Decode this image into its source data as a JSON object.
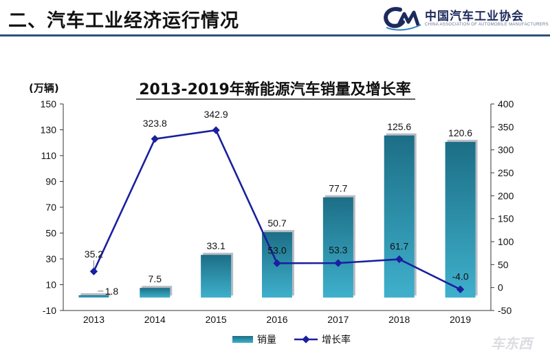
{
  "header": {
    "title": "二、汽车工业经济运行情况",
    "logo_mark": "CM",
    "logo_name": "中国汽车工业协会",
    "logo_subtitle": "CHINA ASSOCIATION OF AUTOMOBILE MANUFACTURERS"
  },
  "watermark": "车东西",
  "colors": {
    "bar": "#2a93ad",
    "line": "#1a1f9e",
    "title_rule": "#2f4f7a"
  },
  "chart_data": {
    "type": "bar",
    "title": "2013-2019年新能源汽车销量及增长率",
    "ylabel_left": "(万辆)",
    "categories": [
      "2013",
      "2014",
      "2015",
      "2016",
      "2017",
      "2018",
      "2019"
    ],
    "series": [
      {
        "name": "销量",
        "type": "bar",
        "axis": "left",
        "values": [
          1.8,
          7.5,
          33.1,
          50.7,
          77.7,
          125.6,
          120.6
        ],
        "labels": [
          "1.8",
          "7.5",
          "33.1",
          "50.7",
          "77.7",
          "125.6",
          "120.6"
        ]
      },
      {
        "name": "增长率",
        "type": "line",
        "axis": "right",
        "values": [
          35.2,
          323.8,
          342.9,
          53.0,
          53.3,
          61.7,
          -4.0
        ],
        "labels": [
          "35.2",
          "323.8",
          "342.9",
          "53.0",
          "53.3",
          "61.7",
          "-4.0"
        ]
      }
    ],
    "y_left": {
      "min": -10,
      "max": 150,
      "ticks": [
        "150",
        "130",
        "110",
        "90",
        "70",
        "50",
        "30",
        "10",
        "-10"
      ]
    },
    "y_right": {
      "min": -50,
      "max": 400,
      "ticks": [
        "400",
        "350",
        "300",
        "250",
        "200",
        "150",
        "100",
        "50",
        "0",
        "-50"
      ]
    },
    "grid": false,
    "legend_position": "bottom-center"
  }
}
